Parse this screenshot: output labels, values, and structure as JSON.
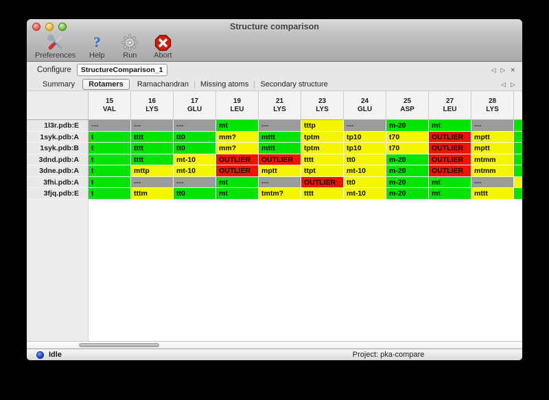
{
  "window": {
    "title": "Structure comparison"
  },
  "toolbar": {
    "buttons": [
      {
        "label": "Preferences",
        "icon": "tools-icon"
      },
      {
        "label": "Help",
        "icon": "question-mark-icon",
        "glyph": "?"
      },
      {
        "label": "Run",
        "icon": "gear-icon"
      },
      {
        "label": "Abort",
        "icon": "stop-x-icon"
      }
    ]
  },
  "configure": {
    "label": "Configure",
    "value": "StructureComparison_1"
  },
  "config_nav": {
    "prev": "◁",
    "next": "▷",
    "close": "✕"
  },
  "tabs": [
    {
      "label": "Summary",
      "selected": false
    },
    {
      "label": "Rotamers",
      "selected": true
    },
    {
      "label": "Ramachandran",
      "selected": false
    },
    {
      "label": "Missing atoms",
      "selected": false
    },
    {
      "label": "Secondary structure",
      "selected": false
    }
  ],
  "tab_nav": {
    "prev": "◁",
    "next": "▷"
  },
  "table": {
    "columns": [
      {
        "number": "15",
        "residue": "VAL"
      },
      {
        "number": "16",
        "residue": "LYS"
      },
      {
        "number": "17",
        "residue": "GLU"
      },
      {
        "number": "19",
        "residue": "LEU"
      },
      {
        "number": "21",
        "residue": "LYS"
      },
      {
        "number": "23",
        "residue": "LYS"
      },
      {
        "number": "24",
        "residue": "GLU"
      },
      {
        "number": "25",
        "residue": "ASP"
      },
      {
        "number": "27",
        "residue": "LEU"
      },
      {
        "number": "28",
        "residue": "LYS"
      }
    ],
    "rows": [
      {
        "label": "1l3r.pdb:E",
        "cells": [
          {
            "text": "---",
            "status": "gray"
          },
          {
            "text": "---",
            "status": "gray"
          },
          {
            "text": "---",
            "status": "gray"
          },
          {
            "text": "mt",
            "status": "green"
          },
          {
            "text": "---",
            "status": "gray"
          },
          {
            "text": "tttp",
            "status": "yellow"
          },
          {
            "text": "---",
            "status": "gray"
          },
          {
            "text": "m-20",
            "status": "green"
          },
          {
            "text": "mt",
            "status": "green"
          },
          {
            "text": "---",
            "status": "gray"
          }
        ],
        "partial": "green"
      },
      {
        "label": "1syk.pdb:A",
        "cells": [
          {
            "text": "t",
            "status": "green",
            "clipped": true
          },
          {
            "text": "tttt",
            "status": "green"
          },
          {
            "text": "tt0",
            "status": "green"
          },
          {
            "text": "mm?",
            "status": "yellow"
          },
          {
            "text": "mttt",
            "status": "green"
          },
          {
            "text": "tptm",
            "status": "yellow"
          },
          {
            "text": "tp10",
            "status": "yellow"
          },
          {
            "text": "t70",
            "status": "yellow"
          },
          {
            "text": "OUTLIER",
            "status": "red"
          },
          {
            "text": "mptt",
            "status": "yellow"
          }
        ],
        "partial": "green"
      },
      {
        "label": "1syk.pdb:B",
        "cells": [
          {
            "text": "t",
            "status": "green",
            "clipped": true
          },
          {
            "text": "tttt",
            "status": "green"
          },
          {
            "text": "tt0",
            "status": "green"
          },
          {
            "text": "mm?",
            "status": "yellow"
          },
          {
            "text": "mttt",
            "status": "green"
          },
          {
            "text": "tptm",
            "status": "yellow"
          },
          {
            "text": "tp10",
            "status": "yellow"
          },
          {
            "text": "t70",
            "status": "yellow"
          },
          {
            "text": "OUTLIER",
            "status": "red"
          },
          {
            "text": "mptt",
            "status": "yellow"
          }
        ],
        "partial": "green"
      },
      {
        "label": "3dnd.pdb:A",
        "cells": [
          {
            "text": "t",
            "status": "green",
            "clipped": true
          },
          {
            "text": "tttt",
            "status": "green"
          },
          {
            "text": "mt-10",
            "status": "yellow"
          },
          {
            "text": "OUTLIER",
            "status": "red"
          },
          {
            "text": "OUTLIER",
            "status": "red"
          },
          {
            "text": "tttt",
            "status": "yellow"
          },
          {
            "text": "tt0",
            "status": "yellow"
          },
          {
            "text": "m-20",
            "status": "green"
          },
          {
            "text": "OUTLIER",
            "status": "red"
          },
          {
            "text": "mtmm",
            "status": "yellow"
          }
        ],
        "partial": "green"
      },
      {
        "label": "3dne.pdb:A",
        "cells": [
          {
            "text": "t",
            "status": "green",
            "clipped": true
          },
          {
            "text": "mttp",
            "status": "yellow"
          },
          {
            "text": "mt-10",
            "status": "yellow"
          },
          {
            "text": "OUTLIER",
            "status": "red"
          },
          {
            "text": "mptt",
            "status": "yellow"
          },
          {
            "text": "ttpt",
            "status": "yellow"
          },
          {
            "text": "mt-10",
            "status": "yellow"
          },
          {
            "text": "m-20",
            "status": "green"
          },
          {
            "text": "OUTLIER",
            "status": "red"
          },
          {
            "text": "mtmm",
            "status": "yellow"
          }
        ],
        "partial": "green"
      },
      {
        "label": "3fhi.pdb:A",
        "cells": [
          {
            "text": "t",
            "status": "green",
            "clipped": true
          },
          {
            "text": "---",
            "status": "gray"
          },
          {
            "text": "---",
            "status": "gray"
          },
          {
            "text": "mt",
            "status": "green"
          },
          {
            "text": "---",
            "status": "gray"
          },
          {
            "text": "OUTLIER",
            "status": "red"
          },
          {
            "text": "tt0",
            "status": "yellow"
          },
          {
            "text": "m-20",
            "status": "green"
          },
          {
            "text": "mt",
            "status": "green"
          },
          {
            "text": "---",
            "status": "gray"
          }
        ],
        "partial": "yellow"
      },
      {
        "label": "3fjq.pdb:E",
        "cells": [
          {
            "text": "t",
            "status": "green",
            "clipped": true
          },
          {
            "text": "tttm",
            "status": "yellow"
          },
          {
            "text": "tt0",
            "status": "green"
          },
          {
            "text": "mt",
            "status": "green"
          },
          {
            "text": "tmtm?",
            "status": "yellow"
          },
          {
            "text": "tttt",
            "status": "yellow"
          },
          {
            "text": "mt-10",
            "status": "yellow"
          },
          {
            "text": "m-20",
            "status": "green"
          },
          {
            "text": "mt",
            "status": "green"
          },
          {
            "text": "mttt",
            "status": "yellow"
          }
        ],
        "partial": "green"
      }
    ]
  },
  "status": {
    "state": "Idle",
    "project": "Project: pka-compare"
  },
  "colors": {
    "green": "#00e400",
    "yellow": "#f5f500",
    "red": "#ee1400",
    "gray": "#9b9b9b"
  }
}
